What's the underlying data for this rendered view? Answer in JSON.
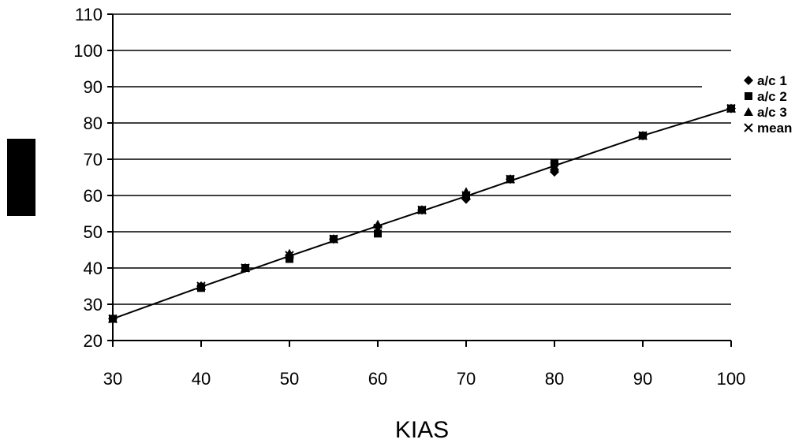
{
  "chart_data": {
    "type": "scatter",
    "title": "",
    "xlabel": "KIAS",
    "ylabel": "",
    "xlim": [
      30,
      100
    ],
    "ylim": [
      20,
      110
    ],
    "xticks": [
      "30",
      "40",
      "50",
      "60",
      "70",
      "80",
      "90",
      "100"
    ],
    "yticks": [
      "20",
      "30",
      "40",
      "50",
      "60",
      "70",
      "80",
      "90",
      "100",
      "110"
    ],
    "grid": "horizontal",
    "legend_position": "right",
    "series": [
      {
        "name": "a/c 1",
        "marker": "diamond",
        "x": [
          30,
          40,
          45,
          50,
          55,
          60,
          65,
          70,
          75,
          80,
          90,
          100
        ],
        "y": [
          26,
          35,
          40,
          43.5,
          48,
          51.5,
          56,
          59,
          64.5,
          66.5,
          76.5,
          84
        ]
      },
      {
        "name": "a/c 2",
        "marker": "square",
        "x": [
          30,
          40,
          45,
          50,
          55,
          60,
          65,
          70,
          75,
          80,
          90,
          100
        ],
        "y": [
          26,
          34.5,
          40,
          42.5,
          48,
          49.5,
          56,
          60,
          64.5,
          69,
          76.5,
          84
        ]
      },
      {
        "name": "a/c 3",
        "marker": "triangle",
        "x": [
          30,
          40,
          45,
          50,
          55,
          60,
          65,
          70,
          75,
          80,
          90,
          100
        ],
        "y": [
          26,
          35,
          40,
          44,
          48,
          52,
          56,
          61,
          64.5,
          68,
          76.5,
          84
        ]
      },
      {
        "name": "mean",
        "marker": "x",
        "x": [
          30,
          40,
          45,
          50,
          55,
          60,
          65,
          70,
          75,
          80,
          90,
          100
        ],
        "y": [
          26,
          35,
          40,
          43.5,
          48,
          51,
          56,
          60,
          64.5,
          68,
          76.5,
          84
        ]
      }
    ],
    "trendline": {
      "x": [
        30,
        40,
        50,
        60,
        70,
        80,
        90,
        100
      ],
      "y": [
        26,
        34.8,
        43.3,
        51.6,
        59.8,
        68.2,
        76.5,
        84
      ]
    }
  }
}
